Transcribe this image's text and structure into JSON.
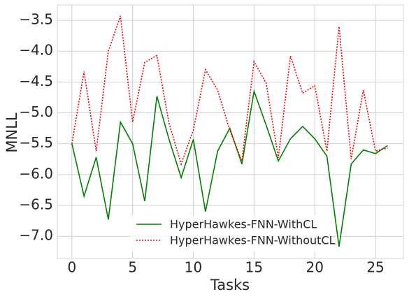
{
  "chart_data": {
    "type": "line",
    "xlabel": "Tasks",
    "ylabel": "MNLL",
    "x": [
      0,
      1,
      2,
      3,
      4,
      5,
      6,
      7,
      8,
      9,
      10,
      11,
      12,
      13,
      14,
      15,
      16,
      17,
      18,
      19,
      20,
      21,
      22,
      23,
      24,
      25,
      26
    ],
    "series": [
      {
        "name": "HyperHawkes-FNN-WithCL",
        "color": "#008000",
        "linestyle": "solid",
        "values": [
          -5.5,
          -6.35,
          -5.72,
          -6.73,
          -5.15,
          -5.5,
          -6.43,
          -4.73,
          -5.43,
          -6.05,
          -5.43,
          -6.6,
          -5.62,
          -5.25,
          -5.83,
          -4.65,
          -5.2,
          -5.78,
          -5.42,
          -5.22,
          -5.42,
          -5.7,
          -7.17,
          -5.83,
          -5.6,
          -5.66,
          -5.53
        ]
      },
      {
        "name": "HyperHawkes-FNN-WithoutCL",
        "color": "#ff0000",
        "linestyle": "dotted",
        "values": [
          -5.5,
          -4.33,
          -5.62,
          -4.0,
          -3.43,
          -5.15,
          -4.18,
          -4.07,
          -5.17,
          -5.83,
          -5.28,
          -4.3,
          -4.63,
          -5.28,
          -5.78,
          -4.17,
          -4.52,
          -5.73,
          -4.08,
          -4.68,
          -4.56,
          -5.62,
          -3.6,
          -5.75,
          -4.63,
          -5.62,
          -5.57
        ]
      }
    ],
    "xlim": [
      -1.2,
      27.3
    ],
    "xticks": [
      0,
      5,
      10,
      15,
      20,
      25
    ],
    "ylim": [
      -7.36,
      -3.25
    ],
    "yticks": [
      {
        "value": -7.0,
        "label": "−7.0"
      },
      {
        "value": -6.5,
        "label": "−6.5"
      },
      {
        "value": -6.0,
        "label": "−6.0"
      },
      {
        "value": -5.5,
        "label": "−5.5"
      },
      {
        "value": -5.0,
        "label": "−5.0"
      },
      {
        "value": -4.5,
        "label": "−4.5"
      },
      {
        "value": -4.0,
        "label": "−4.0"
      },
      {
        "value": -3.5,
        "label": "−3.5"
      }
    ],
    "grid": true,
    "legend": "lower center"
  }
}
